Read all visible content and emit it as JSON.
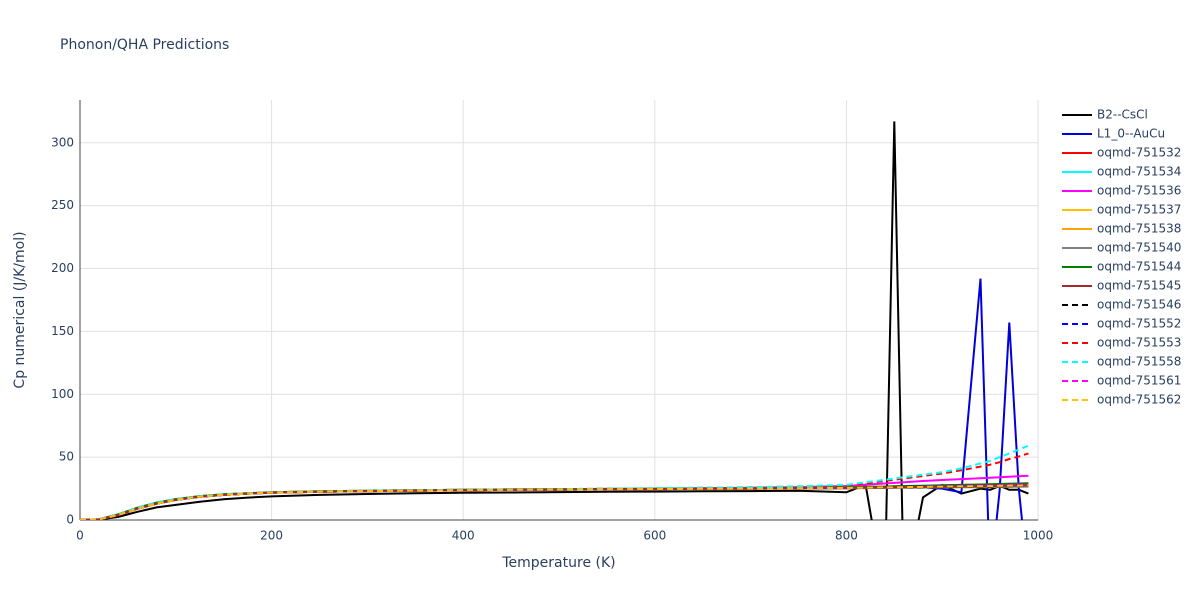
{
  "chart_data": {
    "type": "line",
    "title": "Phonon/QHA Predictions",
    "x_label": "Temperature (K)",
    "y_label": "Cp numerical (J/K/mol)",
    "xlim": [
      0,
      1000
    ],
    "ylim": [
      0,
      334
    ],
    "xticks": [
      0,
      200,
      400,
      600,
      800,
      1000
    ],
    "yticks": [
      0,
      50,
      100,
      150,
      200,
      250,
      300
    ],
    "grid": true,
    "legend": "right",
    "x": [
      0,
      20,
      40,
      60,
      80,
      100,
      125,
      150,
      175,
      200,
      250,
      300,
      350,
      400,
      450,
      500,
      550,
      600,
      650,
      700,
      750,
      800,
      820,
      840,
      850,
      860,
      880,
      900,
      920,
      940,
      950,
      960,
      970,
      980,
      990
    ],
    "series": [
      {
        "name": "B2--CsCl",
        "color": "#000000",
        "dash": false,
        "values": [
          0,
          0.3,
          2.5,
          6.5,
          10,
          12,
          14.5,
          16.5,
          17.8,
          18.8,
          20,
          20.7,
          21.2,
          21.6,
          21.9,
          22.2,
          22.4,
          22.6,
          22.8,
          23,
          23.2,
          22,
          28,
          -60,
          317,
          -60,
          18,
          28,
          21,
          25,
          24,
          27,
          24,
          24,
          21
        ]
      },
      {
        "name": "L1_0--AuCu",
        "color": "#0000dd",
        "dash": false,
        "values": [
          0,
          0.5,
          4,
          9,
          13,
          16,
          18.5,
          20,
          21,
          21.7,
          22.4,
          22.9,
          23.3,
          23.6,
          23.9,
          24.1,
          24.3,
          24.5,
          24.7,
          24.9,
          25.1,
          25.3,
          25.5,
          25.7,
          25.8,
          25.9,
          26,
          25,
          22,
          192,
          -50,
          24,
          157,
          25,
          -50
        ]
      },
      {
        "name": "oqmd-751532",
        "color": "#ff0000",
        "dash": false,
        "values": [
          0,
          0.5,
          4,
          9,
          13,
          16,
          18.5,
          20,
          21,
          21.8,
          22.5,
          23,
          23.4,
          23.7,
          24,
          24.2,
          24.4,
          24.6,
          24.8,
          25,
          25.2,
          25.5,
          25.6,
          25.7,
          25.8,
          25.9,
          26,
          26.2,
          26.4,
          26.6,
          26.7,
          26.8,
          26.9,
          27,
          27.1
        ]
      },
      {
        "name": "oqmd-751534",
        "color": "#00ffff",
        "dash": false,
        "values": [
          0,
          0.6,
          4.5,
          9.8,
          13.8,
          16.6,
          19,
          20.4,
          21.3,
          22,
          22.8,
          23.3,
          23.7,
          24,
          24.3,
          24.5,
          24.7,
          24.9,
          25.1,
          25.3,
          25.6,
          26,
          26.2,
          26.4,
          26.5,
          26.6,
          26.8,
          27,
          27.2,
          27.4,
          27.5,
          27.6,
          27.7,
          27.8,
          27.9
        ]
      },
      {
        "name": "oqmd-751536",
        "color": "#ff00ff",
        "dash": false,
        "values": [
          0,
          0.5,
          4,
          9,
          13,
          16,
          18.5,
          20,
          21,
          21.8,
          22.5,
          23,
          23.4,
          23.7,
          24,
          24.3,
          24.6,
          24.9,
          25.3,
          25.7,
          26.2,
          27,
          28,
          29,
          29.5,
          30,
          31,
          31.8,
          32.5,
          33.2,
          33.6,
          34,
          34.4,
          34.8,
          35.2
        ]
      },
      {
        "name": "oqmd-751537",
        "color": "#ffc000",
        "dash": false,
        "values": [
          0,
          0.6,
          4.5,
          9.8,
          13.8,
          16.6,
          19,
          20.4,
          21.3,
          22,
          22.8,
          23.3,
          23.7,
          24,
          24.3,
          24.5,
          24.7,
          24.9,
          25.1,
          25.3,
          25.6,
          26,
          26.3,
          26.6,
          26.8,
          27,
          27.3,
          27.6,
          27.9,
          28.2,
          28.4,
          28.6,
          28.8,
          29,
          29.2
        ]
      },
      {
        "name": "oqmd-751538",
        "color": "#ffa500",
        "dash": false,
        "values": [
          0,
          0.5,
          4,
          9,
          13,
          16,
          18.5,
          20,
          21,
          21.8,
          22.5,
          23,
          23.4,
          23.7,
          24,
          24.2,
          24.4,
          24.6,
          24.8,
          25,
          25.2,
          25.5,
          25.7,
          25.9,
          26,
          26.1,
          26.3,
          26.5,
          26.7,
          26.9,
          27,
          27.1,
          27.2,
          27.3,
          27.4
        ]
      },
      {
        "name": "oqmd-751540",
        "color": "#808080",
        "dash": false,
        "values": [
          0,
          0.5,
          4,
          9,
          13,
          16,
          18.5,
          20,
          21,
          21.7,
          22.4,
          22.9,
          23.3,
          23.6,
          23.9,
          24.1,
          24.3,
          24.5,
          24.7,
          24.9,
          25.1,
          25.3,
          25.4,
          25.5,
          25.6,
          25.7,
          25.8,
          25.9,
          26,
          26.1,
          26.2,
          26.3,
          26.4,
          26.5,
          26.6
        ]
      },
      {
        "name": "oqmd-751544",
        "color": "#008000",
        "dash": false,
        "values": [
          0,
          0.6,
          4.5,
          9.8,
          13.8,
          16.6,
          19,
          20.4,
          21.3,
          22,
          22.8,
          23.3,
          23.7,
          24,
          24.3,
          24.5,
          24.7,
          24.9,
          25.1,
          25.3,
          25.6,
          26,
          26.3,
          26.6,
          26.8,
          27,
          27.3,
          27.6,
          27.9,
          28.2,
          28.4,
          28.6,
          28.8,
          29,
          29.2
        ]
      },
      {
        "name": "oqmd-751545",
        "color": "#a52a2a",
        "dash": false,
        "values": [
          0,
          0.5,
          4,
          9,
          13,
          16,
          18.5,
          20,
          21,
          21.8,
          22.5,
          23,
          23.4,
          23.7,
          24,
          24.2,
          24.4,
          24.6,
          24.8,
          25,
          25.2,
          25.5,
          25.7,
          25.9,
          26,
          26.1,
          26.3,
          26.5,
          26.7,
          26.9,
          27,
          27.1,
          27.3,
          27.5,
          27.7
        ]
      },
      {
        "name": "oqmd-751546",
        "color": "#000000",
        "dash": true,
        "values": [
          0,
          0.5,
          4,
          9,
          13,
          16,
          18.5,
          20,
          21,
          21.8,
          22.5,
          23,
          23.4,
          23.7,
          24,
          24.2,
          24.4,
          24.6,
          24.8,
          25,
          25.2,
          25.5,
          25.6,
          25.7,
          25.8,
          25.9,
          26,
          26.2,
          26.4,
          26.6,
          26.7,
          26.8,
          26.9,
          27,
          27.1
        ]
      },
      {
        "name": "oqmd-751552",
        "color": "#0000ff",
        "dash": true,
        "values": [
          0,
          0.5,
          4,
          9,
          13,
          16,
          18.5,
          20,
          21,
          21.8,
          22.5,
          23,
          23.4,
          23.7,
          24,
          24.2,
          24.4,
          24.6,
          24.8,
          25,
          25.2,
          25.5,
          25.8,
          26.1,
          26.3,
          26.5,
          26.8,
          27.1,
          27.4,
          27.7,
          27.9,
          28.1,
          28.3,
          28.5,
          28.7
        ]
      },
      {
        "name": "oqmd-751553",
        "color": "#ff0000",
        "dash": true,
        "values": [
          0,
          0.6,
          4.5,
          9.8,
          13.8,
          16.6,
          19,
          20.4,
          21.3,
          22,
          22.8,
          23.3,
          23.7,
          24,
          24.3,
          24.6,
          24.9,
          25.2,
          25.6,
          26,
          26.6,
          27.5,
          29,
          31,
          32,
          33,
          35,
          37,
          39.5,
          42.5,
          44,
          46,
          48.5,
          50.5,
          53
        ]
      },
      {
        "name": "oqmd-751558",
        "color": "#00ffff",
        "dash": true,
        "values": [
          0,
          0.6,
          4.5,
          9.8,
          13.8,
          16.6,
          19,
          20.4,
          21.3,
          22,
          22.8,
          23.3,
          23.7,
          24,
          24.3,
          24.6,
          24.9,
          25.3,
          25.7,
          26.2,
          26.8,
          28,
          30,
          32,
          33,
          34,
          36,
          38,
          41,
          45,
          47,
          50,
          53,
          56,
          59
        ]
      },
      {
        "name": "oqmd-751561",
        "color": "#ff00ff",
        "dash": true,
        "values": [
          0,
          0.5,
          4,
          9,
          13,
          16,
          18.5,
          20,
          21,
          21.8,
          22.5,
          23,
          23.4,
          23.7,
          24,
          24.2,
          24.4,
          24.6,
          24.8,
          25,
          25.2,
          25.5,
          25.7,
          25.9,
          26,
          26.2,
          26.5,
          26.8,
          27.1,
          27.4,
          27.6,
          27.8,
          28,
          28.2,
          28.4
        ]
      },
      {
        "name": "oqmd-751562",
        "color": "#ffc000",
        "dash": true,
        "values": [
          0,
          0.5,
          4,
          9,
          13,
          16,
          18.5,
          20,
          21,
          21.8,
          22.5,
          23,
          23.4,
          23.7,
          24,
          24.2,
          24.4,
          24.6,
          24.8,
          25,
          25.2,
          25.5,
          25.7,
          25.9,
          26,
          26.1,
          26.3,
          26.5,
          26.7,
          26.9,
          27,
          27.1,
          27.2,
          27.3,
          27.4
        ]
      }
    ]
  }
}
